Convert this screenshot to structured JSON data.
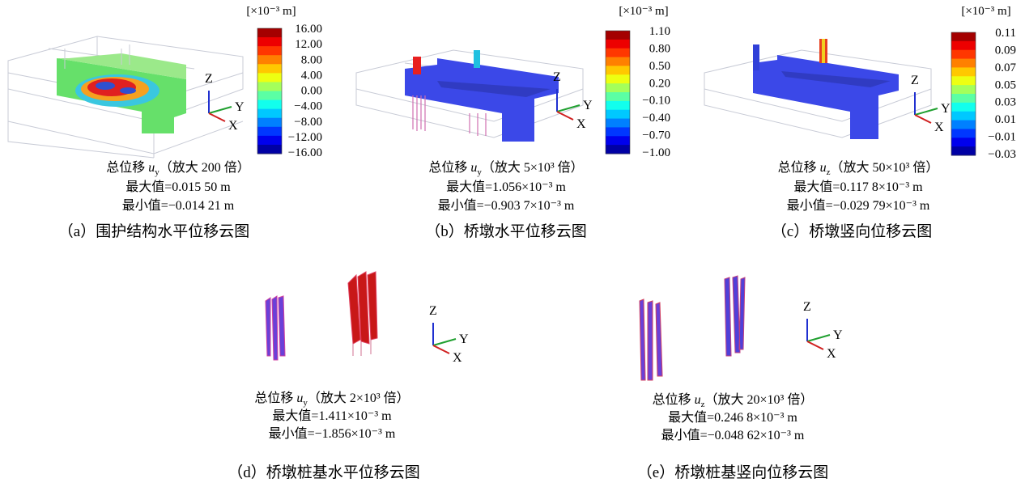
{
  "axes": {
    "z": "Z",
    "y": "Y",
    "x": "X"
  },
  "panels": [
    {
      "unit": "[×10⁻³ m]",
      "scale": [
        "16.00",
        "12.00",
        "8.00",
        "4.00",
        "0.00",
        "−4.00",
        "−8.00",
        "−12.00",
        "−16.00"
      ],
      "caption": {
        "quantity": "总位移",
        "symbol": "u",
        "subscript": "y",
        "factor": "（放大 200 倍）",
        "max": "最大值=0.015 50 m",
        "min": "最小值=−0.014 21 m"
      },
      "label": "（a）围护结构水平位移云图"
    },
    {
      "unit": "[×10⁻³ m]",
      "scale": [
        "1.10",
        "0.80",
        "0.50",
        "0.20",
        "−0.10",
        "−0.40",
        "−0.70",
        "−1.00"
      ],
      "caption": {
        "quantity": "总位移",
        "symbol": "u",
        "subscript": "y",
        "factor": "（放大 5×10³ 倍）",
        "max": "最大值=1.056×10⁻³ m",
        "min": "最小值=−0.903 7×10⁻³ m"
      },
      "label": "（b）桥墩水平位移云图"
    },
    {
      "unit": "[×10⁻³ m]",
      "scale": [
        "0.11",
        "0.09",
        "0.07",
        "0.05",
        "0.03",
        "0.01",
        "−0.01",
        "−0.03"
      ],
      "caption": {
        "quantity": "总位移",
        "symbol": "u",
        "subscript": "z",
        "factor": "（放大 50×10³ 倍）",
        "max": "最大值=0.117 8×10⁻³ m",
        "min": "最小值=−0.029 79×10⁻³ m"
      },
      "label": "（c）桥墩竖向位移云图"
    },
    {
      "caption": {
        "quantity": "总位移",
        "symbol": "u",
        "subscript": "y",
        "factor": "（放大 2×10³ 倍）",
        "max": "最大值=1.411×10⁻³ m",
        "min": "最小值=−1.856×10⁻³ m"
      },
      "label": "（d）桥墩桩基水平位移云图"
    },
    {
      "caption": {
        "quantity": "总位移",
        "symbol": "u",
        "subscript": "z",
        "factor": "（放大 20×10³ 倍）",
        "max": "最大值=0.246 8×10⁻³ m",
        "min": "最小值=−0.048 62×10⁻³ m"
      },
      "label": "（e）桥墩桩基竖向位移云图"
    }
  ]
}
